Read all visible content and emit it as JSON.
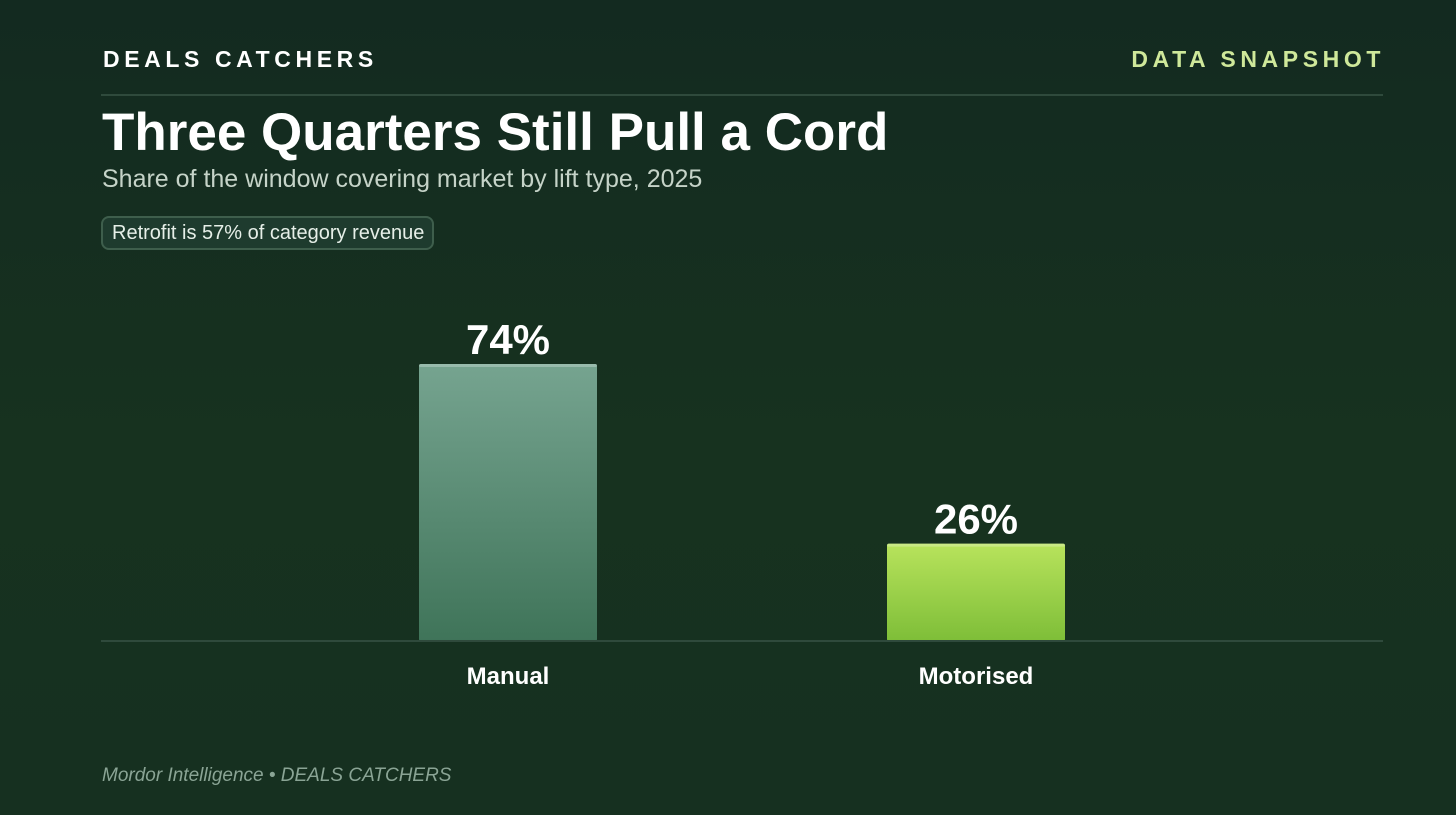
{
  "header": {
    "brand": "DEALS CATCHERS",
    "tag": "DATA SNAPSHOT"
  },
  "title": "Three Quarters Still Pull a Cord",
  "subtitle": "Share of the window covering market by lift type, 2025",
  "badge": "Retrofit is 57% of category revenue",
  "source": "Mordor Intelligence • DEALS CATCHERS",
  "colors": {
    "background": "#17301f",
    "accent": "#cfe89a",
    "manual_bar_top": "#76a490",
    "manual_bar_bottom": "#3f7459",
    "motorised_bar_top": "#b8e35c",
    "motorised_bar_bottom": "#7ebe38"
  },
  "chart_data": {
    "type": "bar",
    "categories": [
      "Manual",
      "Motorised"
    ],
    "values": [
      74,
      26
    ],
    "value_labels": [
      "74%",
      "26%"
    ],
    "unit": "%",
    "title": "Three Quarters Still Pull a Cord",
    "subtitle": "Share of the window covering market by lift type, 2025",
    "xlabel": "",
    "ylabel": "",
    "ylim": [
      0,
      74
    ],
    "grid": false,
    "legend": "none"
  }
}
